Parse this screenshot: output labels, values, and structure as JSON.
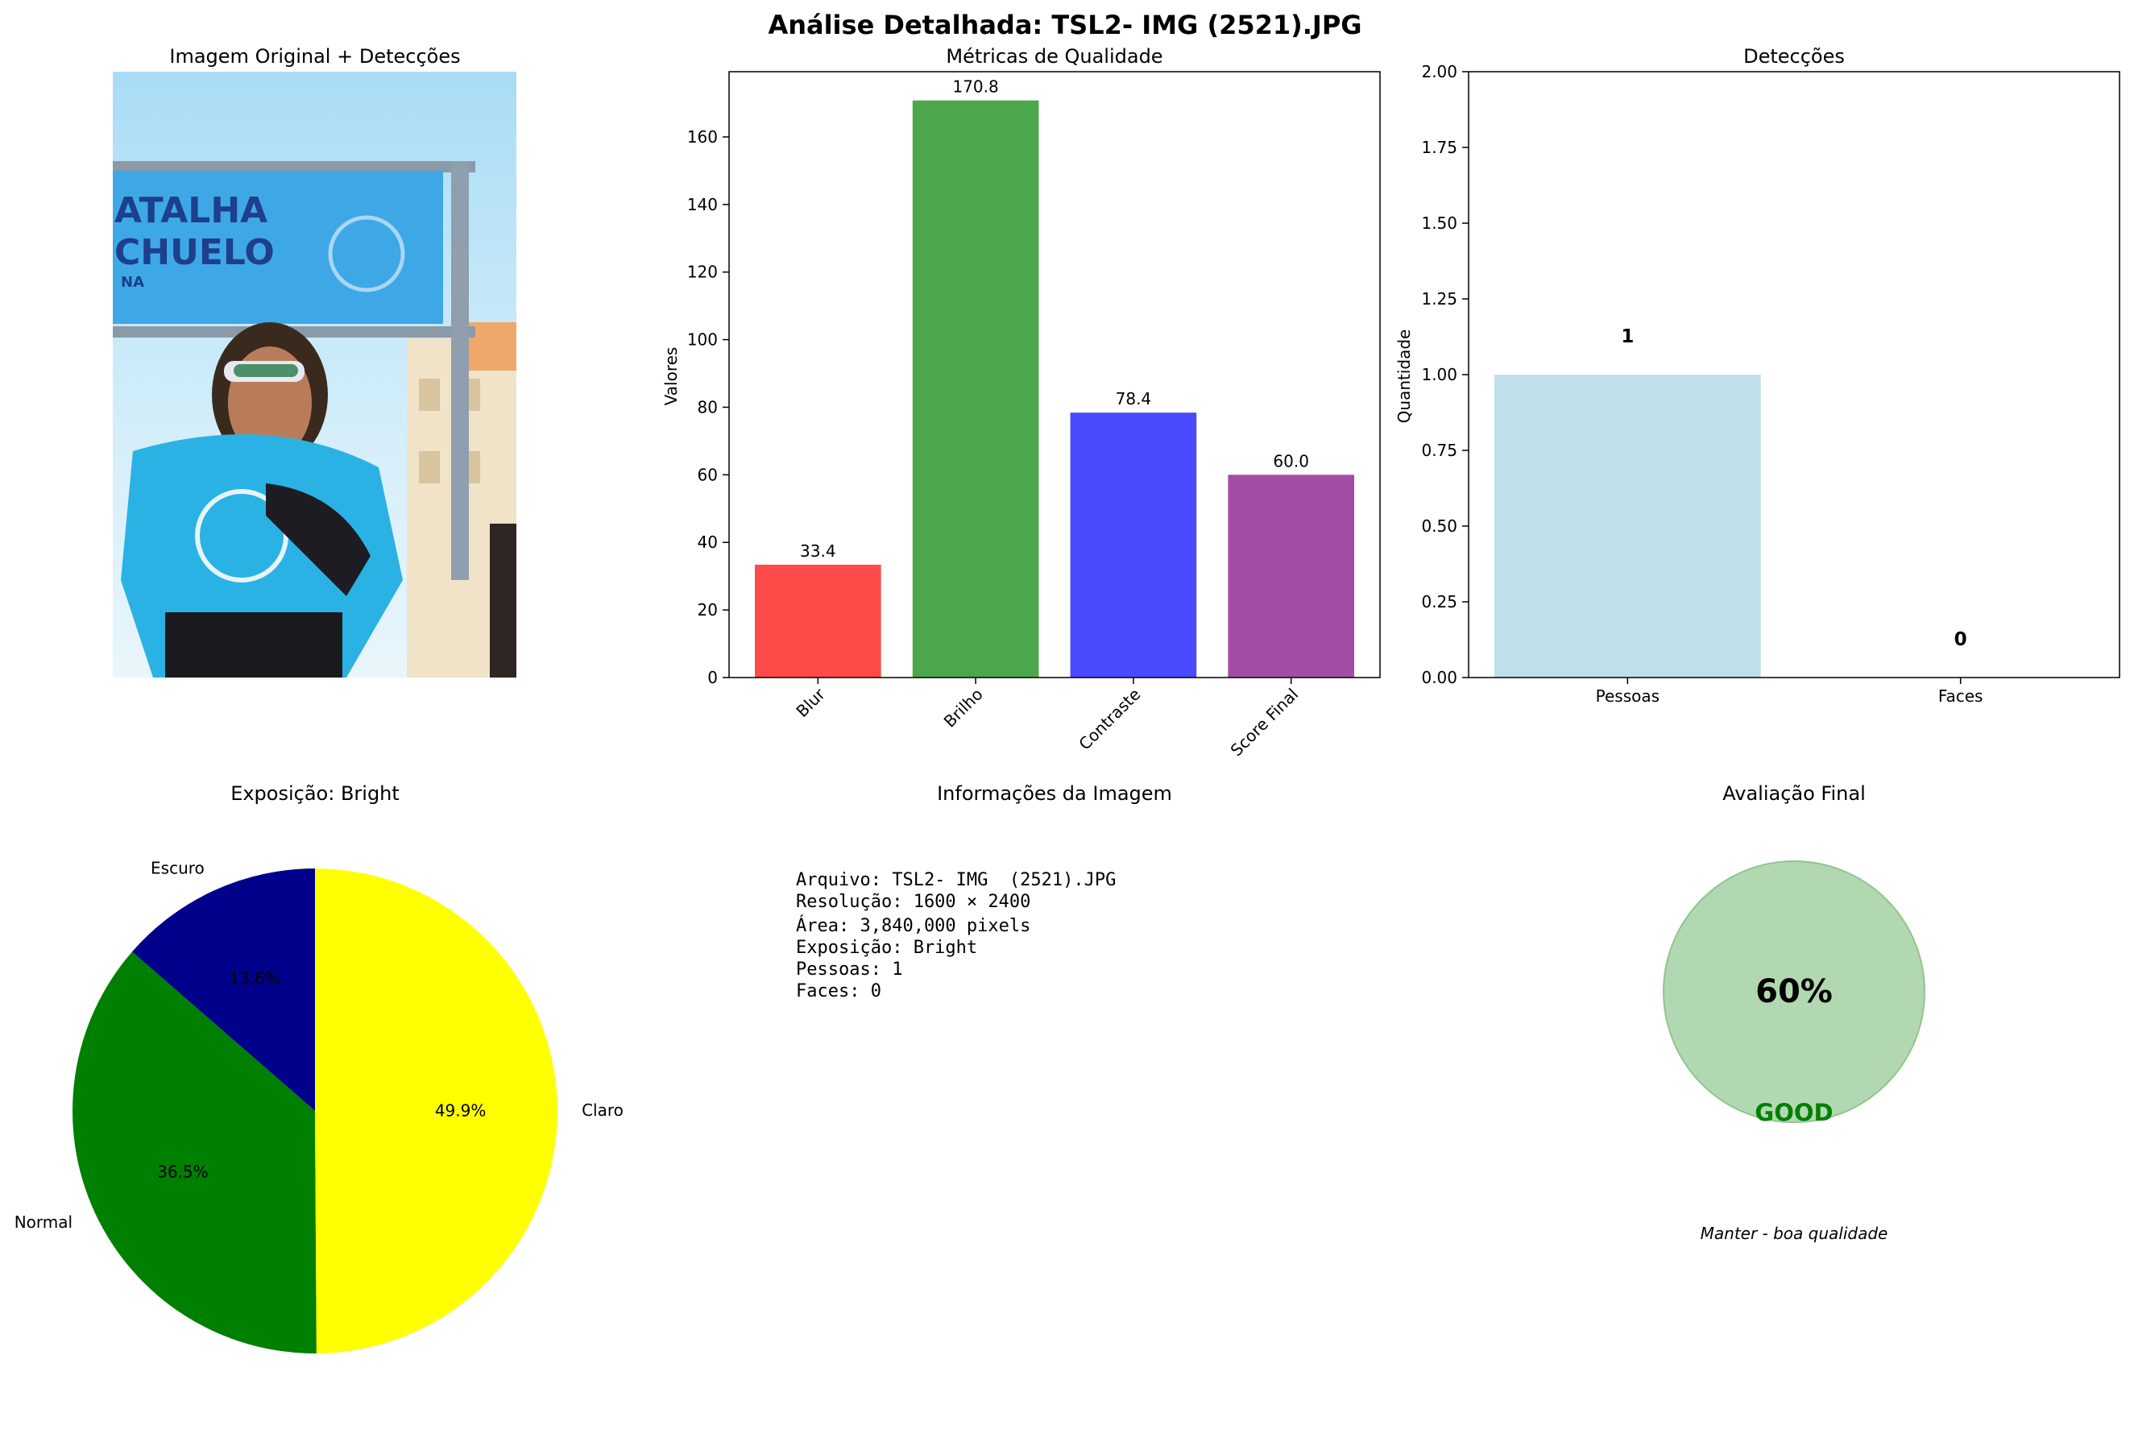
{
  "suptitle": "Análise Detalhada: TSL2- IMG  (2521).JPG",
  "photo_panel": {
    "title": "Imagem Original + Detecções",
    "banner_text_line1": "ATALHA",
    "banner_text_line2": "CHUELO",
    "banner_text_line3": "NA"
  },
  "colors": {
    "blur": "#ff4a4a",
    "brilho": "#4ca64c",
    "contraste": "#4a4aff",
    "score": "#a24ca6",
    "pessoas": "#bfe0eb",
    "escuro": "#00008b",
    "normal": "#008000",
    "claro": "#ffff00",
    "good": "#008000",
    "gauge_fill": "#b2d8b2",
    "gauge_edge": "#8fc58f"
  },
  "chart_data": [
    {
      "type": "bar",
      "title": "Métricas de Qualidade",
      "ylabel": "Valores",
      "categories": [
        "Blur",
        "Brilho",
        "Contraste",
        "Score Final"
      ],
      "values": [
        33.4,
        170.8,
        78.4,
        60.0
      ],
      "value_labels": [
        "33.4",
        "170.8",
        "78.4",
        "60.0"
      ],
      "ylim": [
        0,
        179.3
      ],
      "yticks": [
        0,
        20,
        40,
        60,
        80,
        100,
        120,
        140,
        160
      ],
      "ytick_labels": [
        "0",
        "20",
        "40",
        "60",
        "80",
        "100",
        "120",
        "140",
        "160"
      ]
    },
    {
      "type": "bar",
      "title": "Detecções",
      "ylabel": "Quantidade",
      "categories": [
        "Pessoas",
        "Faces"
      ],
      "values": [
        1,
        0
      ],
      "value_labels": [
        "1",
        "0"
      ],
      "ylim": [
        0,
        2
      ],
      "yticks": [
        0,
        0.25,
        0.5,
        0.75,
        1.0,
        1.25,
        1.5,
        1.75,
        2.0
      ],
      "ytick_labels": [
        "0.00",
        "0.25",
        "0.50",
        "0.75",
        "1.00",
        "1.25",
        "1.50",
        "1.75",
        "2.00"
      ]
    },
    {
      "type": "pie",
      "title": "Exposição: Bright",
      "labels": [
        "Escuro",
        "Normal",
        "Claro"
      ],
      "values": [
        13.6,
        36.5,
        49.9
      ],
      "pct_labels": [
        "13.6%",
        "36.5%",
        "49.9%"
      ]
    }
  ],
  "info_panel": {
    "title": "Informações da Imagem",
    "lines": [
      "Arquivo: TSL2- IMG  (2521).JPG",
      "Resolução: 1600 × 2400",
      "Área: 3,840,000 pixels",
      "Exposição: Bright",
      "Pessoas: 1",
      "Faces: 0"
    ]
  },
  "final_panel": {
    "title": "Avaliação Final",
    "score_text": "60%",
    "rating": "GOOD",
    "recommendation": "Manter - boa qualidade"
  }
}
